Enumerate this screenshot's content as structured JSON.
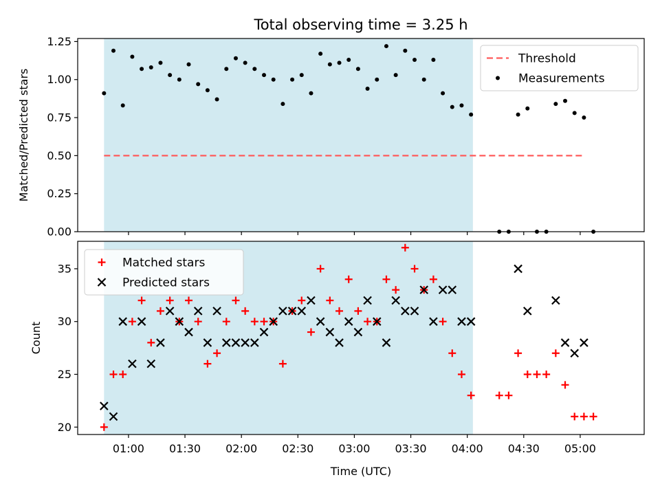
{
  "chart_data": {
    "title": "Total observing time = 3.25 h",
    "xlabel": "Time (UTC)",
    "x_ticks": [
      "01:00",
      "01:30",
      "02:00",
      "02:30",
      "03:00",
      "03:30",
      "04:00",
      "04:30",
      "05:00"
    ],
    "shaded_interval": [
      "00:47",
      "04:03"
    ],
    "shade_color": "#add8e6",
    "panels": [
      {
        "type": "scatter",
        "ylabel": "Matched/Predicted stars",
        "ylim": [
          0,
          1.27
        ],
        "y_ticks": [
          "0.00",
          "0.25",
          "0.50",
          "0.75",
          "1.00",
          "1.25"
        ],
        "legend_position": "upper right",
        "threshold": {
          "name": "Threshold",
          "value": 0.5,
          "x_range": [
            "00:47",
            "05:02"
          ],
          "color": "#ff5a5a"
        },
        "series": [
          {
            "name": "Measurements",
            "marker": "dot",
            "color": "#000000",
            "points": [
              [
                "00:47",
                0.91
              ],
              [
                "00:52",
                1.19
              ],
              [
                "00:57",
                0.83
              ],
              [
                "01:02",
                1.15
              ],
              [
                "01:07",
                1.07
              ],
              [
                "01:12",
                1.08
              ],
              [
                "01:17",
                1.11
              ],
              [
                "01:22",
                1.03
              ],
              [
                "01:27",
                1.0
              ],
              [
                "01:32",
                1.1
              ],
              [
                "01:37",
                0.97
              ],
              [
                "01:42",
                0.93
              ],
              [
                "01:47",
                0.87
              ],
              [
                "01:52",
                1.07
              ],
              [
                "01:57",
                1.14
              ],
              [
                "02:02",
                1.11
              ],
              [
                "02:07",
                1.07
              ],
              [
                "02:12",
                1.03
              ],
              [
                "02:17",
                1.0
              ],
              [
                "02:22",
                0.84
              ],
              [
                "02:27",
                1.0
              ],
              [
                "02:32",
                1.03
              ],
              [
                "02:37",
                0.91
              ],
              [
                "02:42",
                1.17
              ],
              [
                "02:47",
                1.1
              ],
              [
                "02:52",
                1.11
              ],
              [
                "02:57",
                1.13
              ],
              [
                "03:02",
                1.07
              ],
              [
                "03:07",
                0.94
              ],
              [
                "03:12",
                1.0
              ],
              [
                "03:17",
                1.22
              ],
              [
                "03:22",
                1.03
              ],
              [
                "03:27",
                1.19
              ],
              [
                "03:32",
                1.13
              ],
              [
                "03:37",
                1.0
              ],
              [
                "03:42",
                1.13
              ],
              [
                "03:47",
                0.91
              ],
              [
                "03:52",
                0.82
              ],
              [
                "03:57",
                0.83
              ],
              [
                "04:02",
                0.77
              ],
              [
                "04:17",
                0.0
              ],
              [
                "04:22",
                0.0
              ],
              [
                "04:27",
                0.77
              ],
              [
                "04:32",
                0.81
              ],
              [
                "04:37",
                0.0
              ],
              [
                "04:42",
                0.0
              ],
              [
                "04:47",
                0.84
              ],
              [
                "04:52",
                0.86
              ],
              [
                "04:57",
                0.78
              ],
              [
                "05:02",
                0.75
              ],
              [
                "05:07",
                0.0
              ]
            ]
          }
        ]
      },
      {
        "type": "scatter",
        "ylabel": "Count",
        "ylim": [
          19.3,
          37.6
        ],
        "y_ticks": [
          "20",
          "25",
          "30",
          "35"
        ],
        "legend_position": "upper left",
        "series": [
          {
            "name": "Matched stars",
            "marker": "plus",
            "color": "#ff0000",
            "points": [
              [
                "00:47",
                20
              ],
              [
                "00:52",
                25
              ],
              [
                "00:57",
                25
              ],
              [
                "01:02",
                30
              ],
              [
                "01:07",
                32
              ],
              [
                "01:12",
                28
              ],
              [
                "01:17",
                31
              ],
              [
                "01:22",
                32
              ],
              [
                "01:27",
                30
              ],
              [
                "01:32",
                32
              ],
              [
                "01:37",
                30
              ],
              [
                "01:42",
                26
              ],
              [
                "01:47",
                27
              ],
              [
                "01:52",
                30
              ],
              [
                "01:57",
                32
              ],
              [
                "02:02",
                31
              ],
              [
                "02:07",
                30
              ],
              [
                "02:12",
                30
              ],
              [
                "02:17",
                30
              ],
              [
                "02:22",
                26
              ],
              [
                "02:27",
                31
              ],
              [
                "02:32",
                32
              ],
              [
                "02:37",
                29
              ],
              [
                "02:42",
                35
              ],
              [
                "02:47",
                32
              ],
              [
                "02:52",
                31
              ],
              [
                "02:57",
                34
              ],
              [
                "03:02",
                31
              ],
              [
                "03:07",
                30
              ],
              [
                "03:12",
                30
              ],
              [
                "03:17",
                34
              ],
              [
                "03:22",
                33
              ],
              [
                "03:27",
                37
              ],
              [
                "03:32",
                35
              ],
              [
                "03:37",
                33
              ],
              [
                "03:42",
                34
              ],
              [
                "03:47",
                30
              ],
              [
                "03:52",
                27
              ],
              [
                "03:57",
                25
              ],
              [
                "04:02",
                23
              ],
              [
                "04:17",
                23
              ],
              [
                "04:22",
                23
              ],
              [
                "04:27",
                27
              ],
              [
                "04:32",
                25
              ],
              [
                "04:37",
                25
              ],
              [
                "04:42",
                25
              ],
              [
                "04:47",
                27
              ],
              [
                "04:52",
                24
              ],
              [
                "04:57",
                21
              ],
              [
                "05:02",
                21
              ],
              [
                "05:07",
                21
              ]
            ]
          },
          {
            "name": "Predicted stars",
            "marker": "x",
            "color": "#000000",
            "points": [
              [
                "00:47",
                22
              ],
              [
                "00:52",
                21
              ],
              [
                "00:57",
                30
              ],
              [
                "01:02",
                26
              ],
              [
                "01:07",
                30
              ],
              [
                "01:12",
                26
              ],
              [
                "01:17",
                28
              ],
              [
                "01:22",
                31
              ],
              [
                "01:27",
                30
              ],
              [
                "01:32",
                29
              ],
              [
                "01:37",
                31
              ],
              [
                "01:42",
                28
              ],
              [
                "01:47",
                31
              ],
              [
                "01:52",
                28
              ],
              [
                "01:57",
                28
              ],
              [
                "02:02",
                28
              ],
              [
                "02:07",
                28
              ],
              [
                "02:12",
                29
              ],
              [
                "02:17",
                30
              ],
              [
                "02:22",
                31
              ],
              [
                "02:27",
                31
              ],
              [
                "02:32",
                31
              ],
              [
                "02:37",
                32
              ],
              [
                "02:42",
                30
              ],
              [
                "02:47",
                29
              ],
              [
                "02:52",
                28
              ],
              [
                "02:57",
                30
              ],
              [
                "03:02",
                29
              ],
              [
                "03:07",
                32
              ],
              [
                "03:12",
                30
              ],
              [
                "03:17",
                28
              ],
              [
                "03:22",
                32
              ],
              [
                "03:27",
                31
              ],
              [
                "03:32",
                31
              ],
              [
                "03:37",
                33
              ],
              [
                "03:42",
                30
              ],
              [
                "03:47",
                33
              ],
              [
                "03:52",
                33
              ],
              [
                "03:57",
                30
              ],
              [
                "04:02",
                30
              ],
              [
                "04:27",
                35
              ],
              [
                "04:32",
                31
              ],
              [
                "04:47",
                32
              ],
              [
                "04:52",
                28
              ],
              [
                "04:57",
                27
              ],
              [
                "05:02",
                28
              ]
            ]
          }
        ]
      }
    ]
  }
}
